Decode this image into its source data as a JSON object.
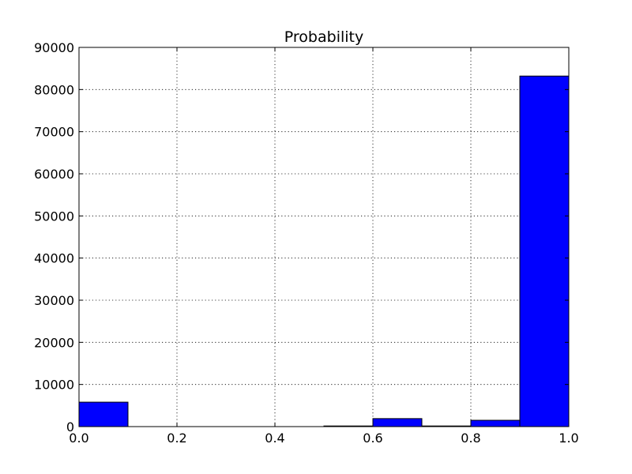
{
  "chart_data": {
    "type": "bar",
    "title": "Probability",
    "xlabel": "",
    "ylabel": "",
    "bins": [
      {
        "x0": 0.0,
        "x1": 0.1,
        "value": 5800
      },
      {
        "x0": 0.1,
        "x1": 0.2,
        "value": 0
      },
      {
        "x0": 0.2,
        "x1": 0.3,
        "value": 0
      },
      {
        "x0": 0.3,
        "x1": 0.4,
        "value": 0
      },
      {
        "x0": 0.4,
        "x1": 0.5,
        "value": 0
      },
      {
        "x0": 0.5,
        "x1": 0.6,
        "value": 150
      },
      {
        "x0": 0.6,
        "x1": 0.7,
        "value": 1900
      },
      {
        "x0": 0.7,
        "x1": 0.8,
        "value": 150
      },
      {
        "x0": 0.8,
        "x1": 0.9,
        "value": 1500
      },
      {
        "x0": 0.9,
        "x1": 1.0,
        "value": 83200
      }
    ],
    "xlim": [
      0.0,
      1.0
    ],
    "ylim": [
      0,
      90000
    ],
    "xticks": [
      "0.0",
      "0.2",
      "0.4",
      "0.6",
      "0.8",
      "1.0"
    ],
    "yticks": [
      "0",
      "10000",
      "20000",
      "30000",
      "40000",
      "50000",
      "60000",
      "70000",
      "80000",
      "90000"
    ],
    "grid": true,
    "bar_color": "#0000ff",
    "edge_color": "#000000"
  }
}
